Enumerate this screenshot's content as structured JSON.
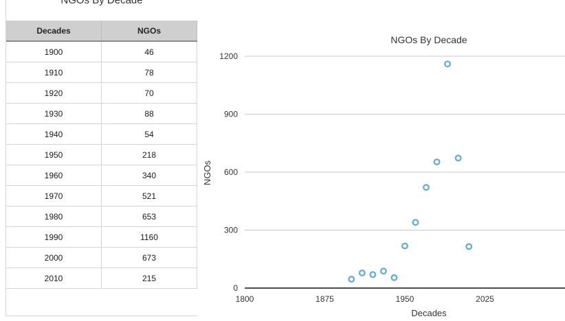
{
  "table": {
    "title": "NGOs By Decade",
    "headers": [
      "Decades",
      "NGOs"
    ],
    "rows": [
      [
        "1900",
        "46"
      ],
      [
        "1910",
        "78"
      ],
      [
        "1920",
        "70"
      ],
      [
        "1930",
        "88"
      ],
      [
        "1940",
        "54"
      ],
      [
        "1950",
        "218"
      ],
      [
        "1960",
        "340"
      ],
      [
        "1970",
        "521"
      ],
      [
        "1980",
        "653"
      ],
      [
        "1990",
        "1160"
      ],
      [
        "2000",
        "673"
      ],
      [
        "2010",
        "215"
      ]
    ]
  },
  "chart_data": {
    "type": "scatter",
    "title": "NGOs By Decade",
    "xlabel": "Decades",
    "ylabel": "NGOs",
    "xlim": [
      1800,
      2100
    ],
    "ylim": [
      0,
      1200
    ],
    "xticks": [
      1800,
      1875,
      1950,
      2025
    ],
    "yticks": [
      0,
      300,
      600,
      900,
      1200
    ],
    "grid": "horizontal",
    "marker_color": "#6aaed6",
    "series": [
      {
        "x": [
          1900,
          1910,
          1920,
          1930,
          1940,
          1950,
          1960,
          1970,
          1980,
          1990,
          2000,
          2010
        ],
        "y": [
          46,
          78,
          70,
          88,
          54,
          218,
          340,
          521,
          653,
          1160,
          673,
          215
        ]
      }
    ]
  }
}
